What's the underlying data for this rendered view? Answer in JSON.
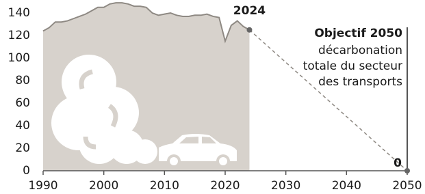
{
  "chart_data": {
    "type": "area",
    "x": [
      1990,
      1991,
      1992,
      1993,
      1994,
      1995,
      1996,
      1997,
      1998,
      1999,
      2000,
      2001,
      2002,
      2003,
      2004,
      2005,
      2006,
      2007,
      2008,
      2009,
      2010,
      2011,
      2012,
      2013,
      2014,
      2015,
      2016,
      2017,
      2018,
      2019,
      2020,
      2021,
      2022,
      2023,
      2024
    ],
    "values": [
      124,
      127,
      132,
      132,
      133,
      135,
      137,
      139,
      142,
      145,
      145,
      148,
      149,
      149,
      148,
      146,
      146,
      145,
      140,
      138,
      139,
      140,
      138,
      137,
      137,
      138,
      138,
      139,
      137,
      136,
      115,
      129,
      133,
      128,
      125
    ],
    "color": "#d7d2cc",
    "line_color": "#8e8983",
    "projection": {
      "x": [
        2024,
        2050
      ],
      "values": [
        125,
        0
      ],
      "color": "#8e8983"
    },
    "xlim": [
      1990,
      2050
    ],
    "xticks": [
      1990,
      2000,
      2010,
      2020,
      2030,
      2040,
      2050
    ],
    "ylim": [
      0,
      140
    ],
    "yticks": [
      0,
      20,
      40,
      60,
      80,
      100,
      120,
      140
    ],
    "annotation": {
      "title": "Objectif 2050",
      "lines": [
        "décarbonation",
        "totale du secteur",
        "des transports"
      ]
    }
  }
}
